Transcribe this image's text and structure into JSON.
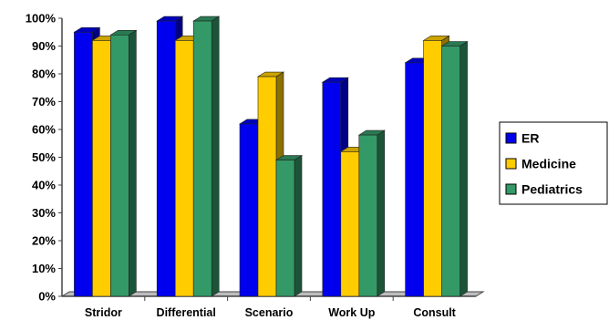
{
  "chart_data": {
    "type": "bar",
    "categories": [
      "Stridor",
      "Differential",
      "Scenario",
      "Work Up",
      "Consult"
    ],
    "series": [
      {
        "name": "ER",
        "color": "#0000ee",
        "values": [
          95,
          99,
          62,
          77,
          84
        ]
      },
      {
        "name": "Medicine",
        "color": "#ffcc00",
        "values": [
          92,
          92,
          79,
          52,
          92
        ]
      },
      {
        "name": "Pediatrics",
        "color": "#339966",
        "values": [
          94,
          99,
          49,
          58,
          90
        ]
      }
    ],
    "ylim": [
      0,
      100
    ],
    "yticks": [
      "0%",
      "10%",
      "20%",
      "30%",
      "40%",
      "50%",
      "60%",
      "70%",
      "80%",
      "90%",
      "100%"
    ],
    "legend_position": "right",
    "grid": false,
    "title": "",
    "xlabel": "",
    "ylabel": ""
  }
}
